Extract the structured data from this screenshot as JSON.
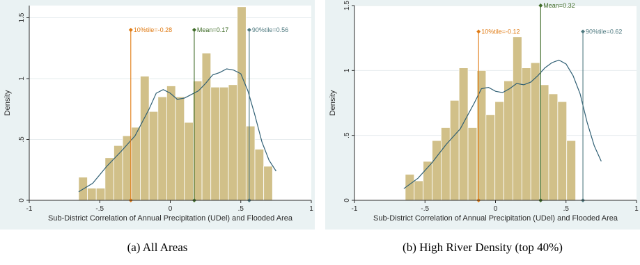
{
  "chart_data": [
    {
      "type": "bar",
      "panel": "a",
      "caption": "(a) All Areas",
      "xlabel": "Sub-District Correlation of Annual Precipitation (UDel) and Flooded Area",
      "ylabel": "Density",
      "xlim": [
        -1,
        1
      ],
      "ylim": [
        0,
        1.6
      ],
      "xticks": [
        "-1",
        "-.5",
        "0",
        ".5",
        "1"
      ],
      "yticks": [
        "0",
        ".5",
        "1",
        "1.5"
      ],
      "bins": {
        "start": -0.65,
        "width": 0.0625,
        "values": [
          0.19,
          0.1,
          0.1,
          0.35,
          0.45,
          0.53,
          0.6,
          1.02,
          0.73,
          0.85,
          0.94,
          0.85,
          0.64,
          0.98,
          1.21,
          0.93,
          0.93,
          0.95,
          1.59,
          0.61,
          0.42,
          0.28
        ]
      },
      "kde": {
        "x": [
          -0.65,
          -0.55,
          -0.45,
          -0.35,
          -0.25,
          -0.15,
          -0.1,
          -0.05,
          0.0,
          0.05,
          0.1,
          0.15,
          0.2,
          0.25,
          0.3,
          0.35,
          0.4,
          0.45,
          0.5,
          0.55,
          0.6,
          0.65,
          0.7,
          0.75
        ],
        "y": [
          0.07,
          0.14,
          0.28,
          0.4,
          0.53,
          0.75,
          0.88,
          0.91,
          0.88,
          0.83,
          0.84,
          0.87,
          0.9,
          0.96,
          1.03,
          1.05,
          1.08,
          1.07,
          1.04,
          0.9,
          0.7,
          0.48,
          0.33,
          0.24
        ]
      },
      "lines": [
        {
          "label": "10%tile=-0.28",
          "x": -0.28,
          "top": 1.4,
          "color": "#e07b14"
        },
        {
          "label": "Mean=0.17",
          "x": 0.17,
          "top": 1.4,
          "color": "#3e6b27"
        },
        {
          "label": "90%tile=0.56",
          "x": 0.56,
          "top": 1.4,
          "color": "#4f7a80"
        }
      ]
    },
    {
      "type": "bar",
      "panel": "b",
      "caption": "(b) High River Density (top 40%)",
      "xlabel": "Sub-District Correlation of Annual Precipitation (UDel) and Flooded Area",
      "ylabel": "Density",
      "xlim": [
        -1,
        1
      ],
      "ylim": [
        0,
        1.5
      ],
      "xticks": [
        "-1",
        "-.5",
        "0",
        ".5",
        "1"
      ],
      "yticks": [
        "0",
        ".5",
        "1",
        "1.5"
      ],
      "bins": {
        "start": -0.64,
        "width": 0.0636,
        "values": [
          0.2,
          0.15,
          0.3,
          0.46,
          0.56,
          0.77,
          1.02,
          0.56,
          1.0,
          0.66,
          0.76,
          0.92,
          1.26,
          1.02,
          1.06,
          0.89,
          0.82,
          0.76,
          0.46
        ]
      },
      "kde": {
        "x": [
          -0.65,
          -0.55,
          -0.45,
          -0.35,
          -0.25,
          -0.15,
          -0.1,
          -0.05,
          0.0,
          0.05,
          0.1,
          0.15,
          0.2,
          0.25,
          0.3,
          0.35,
          0.4,
          0.45,
          0.5,
          0.55,
          0.6,
          0.65,
          0.7,
          0.75
        ],
        "y": [
          0.09,
          0.17,
          0.29,
          0.43,
          0.55,
          0.75,
          0.86,
          0.87,
          0.84,
          0.83,
          0.86,
          0.9,
          0.89,
          0.91,
          0.96,
          1.02,
          1.06,
          1.08,
          1.05,
          0.96,
          0.82,
          0.6,
          0.42,
          0.3
        ]
      },
      "lines": [
        {
          "label": "10%tile=-0.12",
          "x": -0.12,
          "top": 1.3,
          "color": "#e07b14"
        },
        {
          "label": "Mean=0.32",
          "x": 0.32,
          "top": 1.5,
          "color": "#3e6b27"
        },
        {
          "label": "90%tile=0.62",
          "x": 0.62,
          "top": 1.3,
          "color": "#4f7a80"
        }
      ]
    }
  ],
  "colors": {
    "bar_fill": "#d1c089",
    "bar_edge": "#ffffff",
    "kde_line": "#2f5f74",
    "plot_bg": "#ffffff",
    "panel_bg": "#eaf2f3",
    "grid": "#e6ecee"
  }
}
